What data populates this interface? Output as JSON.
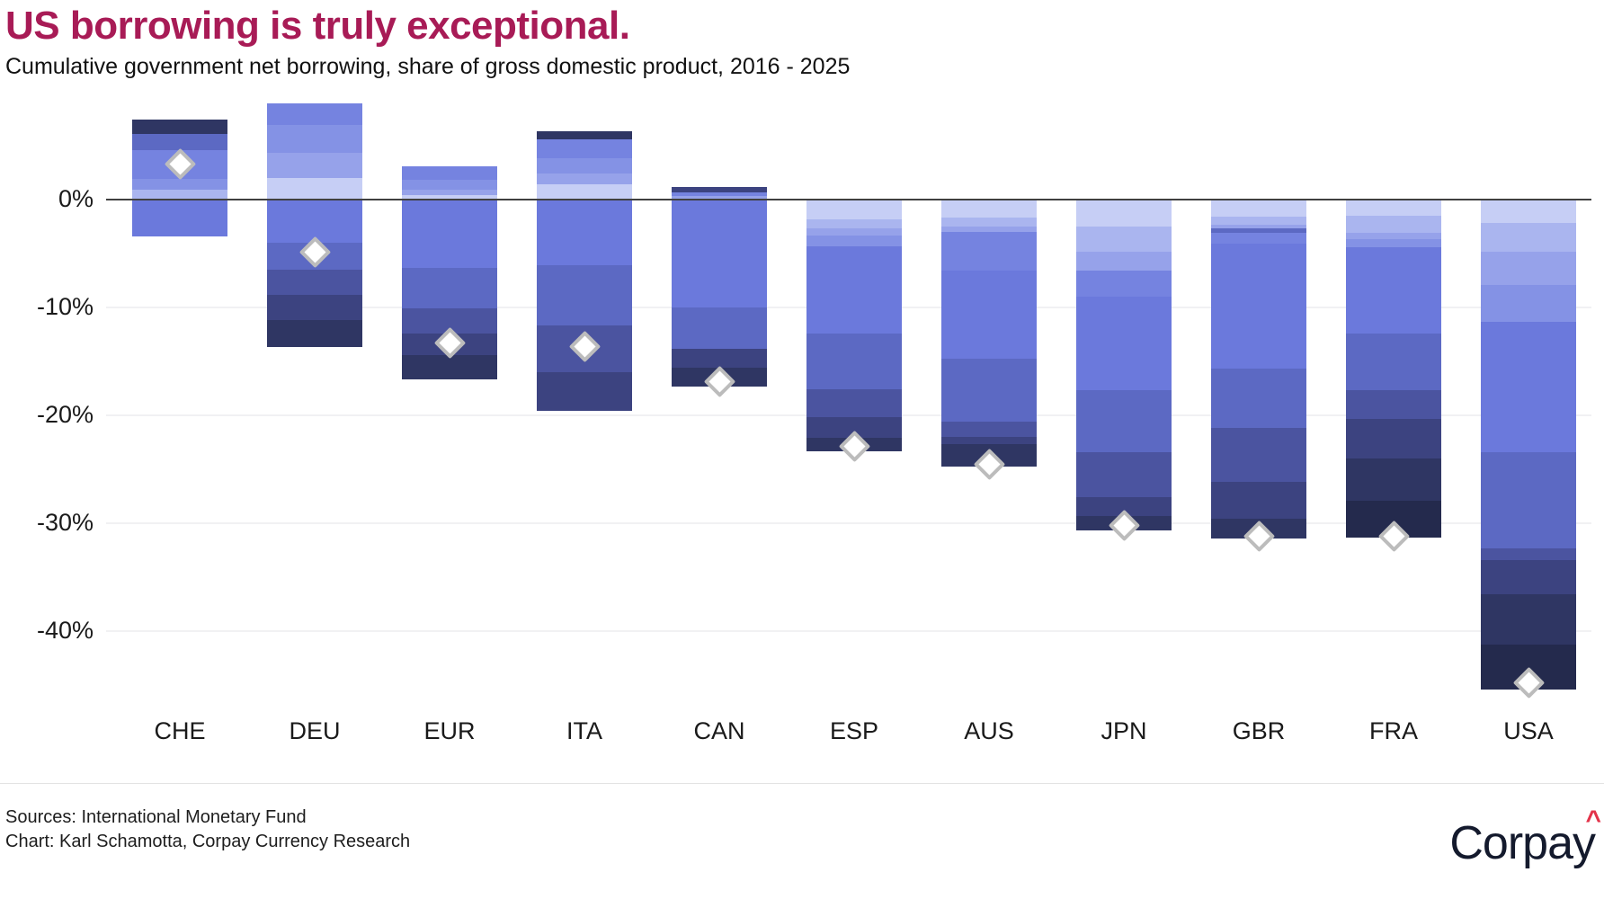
{
  "header": {
    "title": "US borrowing is truly exceptional.",
    "subtitle": "Cumulative government net borrowing, share of gross domestic product, 2016 - 2025"
  },
  "footer": {
    "sources_line": "Sources: International Monetary Fund",
    "credit_line": "Chart: Karl Schamotta, Corpay Currency Research"
  },
  "logo": {
    "text": "Corpay",
    "caret": "^",
    "caret_color": "#e3334a"
  },
  "colors": {
    "title": "#a81b56",
    "zero_line": "#404040",
    "gridline": "#f1f1f3",
    "axis_text": "#1a1a1a",
    "diamond_fill": "#ffffff",
    "diamond_border": "#bcbcbc"
  },
  "chart_data": {
    "type": "bar",
    "subtype": "diverging-stacked-with-net-marker",
    "title": "US borrowing is truly exceptional.",
    "subtitle": "Cumulative government net borrowing, share of gross domestic product, 2016 - 2025",
    "unit": "percent of GDP",
    "ylim": [
      -47,
      9
    ],
    "yticks": [
      {
        "value": 0,
        "label": "0%"
      },
      {
        "value": -10,
        "label": "-10%"
      },
      {
        "value": -20,
        "label": "-20%"
      },
      {
        "value": -30,
        "label": "-30%"
      },
      {
        "value": -40,
        "label": "-40%"
      }
    ],
    "grid": "horizontal-faint",
    "legend": "none",
    "marker_meaning": "white diamond marks the cumulative net borrowing total for each economy",
    "segment_meaning": "stacked yearly balances 2016-2025; surpluses stack above the zero line, deficits below; shading runs light (early years) to dark (late years)",
    "shade_palette_light_to_dark": [
      "#c6cef5",
      "#aab5ef",
      "#96a2ea",
      "#8492e5",
      "#7583e0",
      "#6b79dc",
      "#5c69c3",
      "#4b54a0",
      "#3c4380",
      "#2f3663",
      "#242a4d"
    ],
    "categories": [
      "CHE",
      "DEU",
      "EUR",
      "ITA",
      "CAN",
      "ESP",
      "AUS",
      "JPN",
      "GBR",
      "FRA",
      "USA"
    ],
    "bars": [
      {
        "code": "CHE",
        "net_total_pct": 3.3,
        "positive_segments": [
          {
            "pct": 1.3,
            "shade": 9
          },
          {
            "pct": 1.5,
            "shade": 6
          },
          {
            "pct": 2.7,
            "shade": 4
          },
          {
            "pct": 1.0,
            "shade": 3
          },
          {
            "pct": 0.9,
            "shade": 1
          }
        ],
        "negative_segments": [
          {
            "pct": 3.4,
            "shade": 5
          }
        ]
      },
      {
        "code": "DEU",
        "net_total_pct": -4.9,
        "positive_segments": [
          {
            "pct": 2.0,
            "shade": 4
          },
          {
            "pct": 2.6,
            "shade": 3
          },
          {
            "pct": 2.3,
            "shade": 2
          },
          {
            "pct": 2.0,
            "shade": 0
          }
        ],
        "negative_segments": [
          {
            "pct": 4.0,
            "shade": 5
          },
          {
            "pct": 2.5,
            "shade": 6
          },
          {
            "pct": 2.3,
            "shade": 7
          },
          {
            "pct": 2.4,
            "shade": 8
          },
          {
            "pct": 2.4,
            "shade": 9
          }
        ]
      },
      {
        "code": "EUR",
        "net_total_pct": -13.3,
        "positive_segments": [
          {
            "pct": 1.3,
            "shade": 4
          },
          {
            "pct": 0.9,
            "shade": 3
          },
          {
            "pct": 0.5,
            "shade": 2
          },
          {
            "pct": 0.4,
            "shade": 0
          }
        ],
        "negative_segments": [
          {
            "pct": 6.3,
            "shade": 5
          },
          {
            "pct": 3.8,
            "shade": 6
          },
          {
            "pct": 2.3,
            "shade": 7
          },
          {
            "pct": 2.0,
            "shade": 8
          },
          {
            "pct": 2.2,
            "shade": 9
          }
        ]
      },
      {
        "code": "ITA",
        "net_total_pct": -13.6,
        "positive_segments": [
          {
            "pct": 0.7,
            "shade": 9
          },
          {
            "pct": 1.8,
            "shade": 4
          },
          {
            "pct": 1.4,
            "shade": 3
          },
          {
            "pct": 1.0,
            "shade": 2
          },
          {
            "pct": 1.4,
            "shade": 0
          }
        ],
        "negative_segments": [
          {
            "pct": 6.1,
            "shade": 5
          },
          {
            "pct": 5.6,
            "shade": 6
          },
          {
            "pct": 4.3,
            "shade": 7
          },
          {
            "pct": 3.5,
            "shade": 8
          }
        ]
      },
      {
        "code": "CAN",
        "net_total_pct": -16.9,
        "positive_segments": [
          {
            "pct": 0.45,
            "shade": 8
          },
          {
            "pct": 0.35,
            "shade": 4
          },
          {
            "pct": 0.35,
            "shade": 2
          }
        ],
        "negative_segments": [
          {
            "pct": 10.0,
            "shade": 5
          },
          {
            "pct": 3.8,
            "shade": 6
          },
          {
            "pct": 1.8,
            "shade": 8
          },
          {
            "pct": 1.7,
            "shade": 9
          }
        ]
      },
      {
        "code": "ESP",
        "net_total_pct": -22.9,
        "positive_segments": [],
        "negative_segments": [
          {
            "pct": 1.8,
            "shade": 0
          },
          {
            "pct": 0.9,
            "shade": 1
          },
          {
            "pct": 0.6,
            "shade": 2
          },
          {
            "pct": 1.0,
            "shade": 3
          },
          {
            "pct": 8.1,
            "shade": 5
          },
          {
            "pct": 5.2,
            "shade": 6
          },
          {
            "pct": 2.6,
            "shade": 7
          },
          {
            "pct": 1.9,
            "shade": 8
          },
          {
            "pct": 1.2,
            "shade": 9
          }
        ]
      },
      {
        "code": "AUS",
        "net_total_pct": -24.5,
        "positive_segments": [],
        "negative_segments": [
          {
            "pct": 1.65,
            "shade": 0
          },
          {
            "pct": 0.85,
            "shade": 1
          },
          {
            "pct": 0.5,
            "shade": 2
          },
          {
            "pct": 3.6,
            "shade": 4
          },
          {
            "pct": 8.15,
            "shade": 5
          },
          {
            "pct": 5.8,
            "shade": 6
          },
          {
            "pct": 1.45,
            "shade": 7
          },
          {
            "pct": 0.7,
            "shade": 8
          },
          {
            "pct": 2.0,
            "shade": 9
          }
        ]
      },
      {
        "code": "JPN",
        "net_total_pct": -30.2,
        "positive_segments": [],
        "negative_segments": [
          {
            "pct": 2.5,
            "shade": 0
          },
          {
            "pct": 2.3,
            "shade": 1
          },
          {
            "pct": 1.8,
            "shade": 2
          },
          {
            "pct": 2.4,
            "shade": 4
          },
          {
            "pct": 8.7,
            "shade": 5
          },
          {
            "pct": 5.7,
            "shade": 6
          },
          {
            "pct": 4.2,
            "shade": 7
          },
          {
            "pct": 1.75,
            "shade": 8
          },
          {
            "pct": 1.3,
            "shade": 9
          }
        ]
      },
      {
        "code": "GBR",
        "net_total_pct": -31.2,
        "positive_segments": [],
        "negative_segments": [
          {
            "pct": 1.6,
            "shade": 0
          },
          {
            "pct": 0.7,
            "shade": 1
          },
          {
            "pct": 0.4,
            "shade": 2
          },
          {
            "pct": 0.4,
            "shade": 6
          },
          {
            "pct": 1.0,
            "shade": 4
          },
          {
            "pct": 11.6,
            "shade": 5
          },
          {
            "pct": 5.5,
            "shade": 6
          },
          {
            "pct": 5.0,
            "shade": 7
          },
          {
            "pct": 3.4,
            "shade": 8
          },
          {
            "pct": 1.8,
            "shade": 9
          }
        ]
      },
      {
        "code": "FRA",
        "net_total_pct": -31.2,
        "positive_segments": [],
        "negative_segments": [
          {
            "pct": 1.5,
            "shade": 0
          },
          {
            "pct": 1.6,
            "shade": 1
          },
          {
            "pct": 0.6,
            "shade": 2
          },
          {
            "pct": 0.7,
            "shade": 3
          },
          {
            "pct": 8.0,
            "shade": 5
          },
          {
            "pct": 5.3,
            "shade": 6
          },
          {
            "pct": 2.6,
            "shade": 7
          },
          {
            "pct": 3.7,
            "shade": 8
          },
          {
            "pct": 3.9,
            "shade": 9
          },
          {
            "pct": 3.4,
            "shade": 10
          }
        ]
      },
      {
        "code": "USA",
        "net_total_pct": -44.8,
        "positive_segments": [],
        "negative_segments": [
          {
            "pct": 2.2,
            "shade": 0
          },
          {
            "pct": 2.6,
            "shade": 1
          },
          {
            "pct": 3.1,
            "shade": 2
          },
          {
            "pct": 3.45,
            "shade": 3
          },
          {
            "pct": 12.05,
            "shade": 5
          },
          {
            "pct": 8.9,
            "shade": 6
          },
          {
            "pct": 1.1,
            "shade": 7
          },
          {
            "pct": 3.15,
            "shade": 8
          },
          {
            "pct": 4.7,
            "shade": 9
          },
          {
            "pct": 4.1,
            "shade": 10
          }
        ]
      }
    ]
  }
}
